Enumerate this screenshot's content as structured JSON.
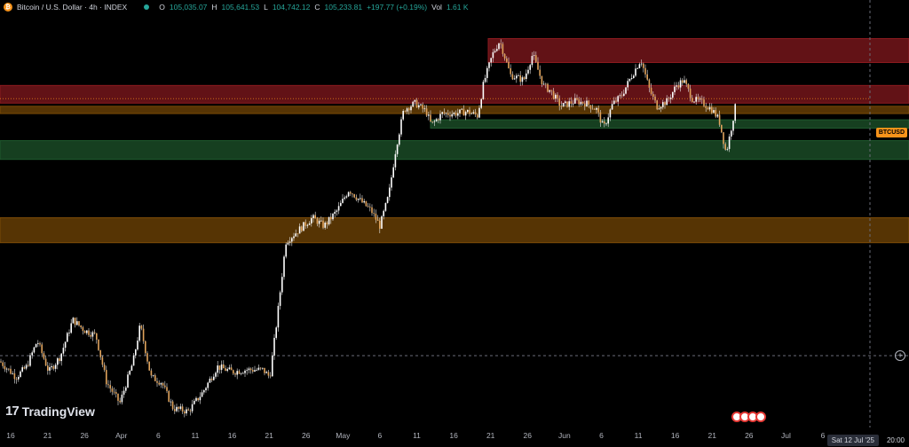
{
  "header": {
    "symbol_icon": "bitcoin-icon",
    "title": "Bitcoin / U.S. Dollar · 4h · INDEX",
    "open_label": "O",
    "open": "105,035.07",
    "high_label": "H",
    "high": "105,641.53",
    "low_label": "L",
    "low": "104,742.12",
    "close_label": "C",
    "close": "105,233.81",
    "change": "+197.77 (+0.19%)",
    "volume_label": "Vol",
    "volume": "1.61 K"
  },
  "logo_text": "TradingView",
  "price_tag": "BTCUSD",
  "date_tag": "Sat 12 Jul '25",
  "time_tag": "20:00",
  "colors": {
    "bg": "#000000",
    "candle": "#e0a35c",
    "wick": "#e6e6e6",
    "resistance": "#8b1a1f",
    "support": "#1f5a2e",
    "pivot": "#7a4a06",
    "accent": "#f7931a"
  },
  "chart_data": {
    "type": "candlestick",
    "x_ticks": [
      "16",
      "21",
      "26",
      "Apr",
      "6",
      "11",
      "16",
      "21",
      "26",
      "May",
      "6",
      "11",
      "16",
      "21",
      "26",
      "Jun",
      "6",
      "11",
      "16",
      "21",
      "26",
      "Jul",
      "6"
    ],
    "ylim": [
      74000,
      113000
    ],
    "zones": [
      {
        "kind": "resistance",
        "from": 108700,
        "to": 111000
      },
      {
        "kind": "resistance",
        "from": 104800,
        "to": 106500
      },
      {
        "kind": "pivot",
        "from": 103800,
        "to": 104500
      },
      {
        "kind": "support",
        "from": 102400,
        "to": 103200
      },
      {
        "kind": "support",
        "from": 99400,
        "to": 101200
      },
      {
        "kind": "pivot",
        "from": 91400,
        "to": 93800
      }
    ],
    "current_price": 105233.81,
    "price_path": [
      [
        0,
        80000
      ],
      [
        18,
        78500
      ],
      [
        30,
        79500
      ],
      [
        42,
        82000
      ],
      [
        55,
        79000
      ],
      [
        68,
        80500
      ],
      [
        82,
        84000
      ],
      [
        95,
        83000
      ],
      [
        108,
        82500
      ],
      [
        120,
        78000
      ],
      [
        135,
        76000
      ],
      [
        150,
        80000
      ],
      [
        158,
        83500
      ],
      [
        170,
        78500
      ],
      [
        182,
        78000
      ],
      [
        195,
        75500
      ],
      [
        212,
        75200
      ],
      [
        228,
        77000
      ],
      [
        245,
        79500
      ],
      [
        262,
        79000
      ],
      [
        278,
        79200
      ],
      [
        296,
        79200
      ],
      [
        304,
        78500
      ],
      [
        312,
        84000
      ],
      [
        322,
        91500
      ],
      [
        335,
        92500
      ],
      [
        352,
        93800
      ],
      [
        365,
        93000
      ],
      [
        380,
        94500
      ],
      [
        393,
        96500
      ],
      [
        405,
        95500
      ],
      [
        418,
        94500
      ],
      [
        428,
        93000
      ],
      [
        438,
        96000
      ],
      [
        446,
        100500
      ],
      [
        455,
        104200
      ],
      [
        468,
        104800
      ],
      [
        480,
        104000
      ],
      [
        486,
        102700
      ],
      [
        498,
        103800
      ],
      [
        512,
        103800
      ],
      [
        526,
        104000
      ],
      [
        538,
        103600
      ],
      [
        545,
        106800
      ],
      [
        555,
        109500
      ],
      [
        563,
        110800
      ],
      [
        575,
        107500
      ],
      [
        590,
        107000
      ],
      [
        600,
        109500
      ],
      [
        612,
        106500
      ],
      [
        620,
        106000
      ],
      [
        632,
        104500
      ],
      [
        648,
        105000
      ],
      [
        660,
        104800
      ],
      [
        672,
        104200
      ],
      [
        680,
        102400
      ],
      [
        690,
        104700
      ],
      [
        700,
        105500
      ],
      [
        712,
        107500
      ],
      [
        722,
        109000
      ],
      [
        732,
        106000
      ],
      [
        740,
        104500
      ],
      [
        752,
        105000
      ],
      [
        762,
        106500
      ],
      [
        770,
        107000
      ],
      [
        780,
        105200
      ],
      [
        792,
        104800
      ],
      [
        802,
        104200
      ],
      [
        810,
        103200
      ],
      [
        818,
        100000
      ],
      [
        824,
        102500
      ],
      [
        830,
        105200
      ]
    ]
  }
}
